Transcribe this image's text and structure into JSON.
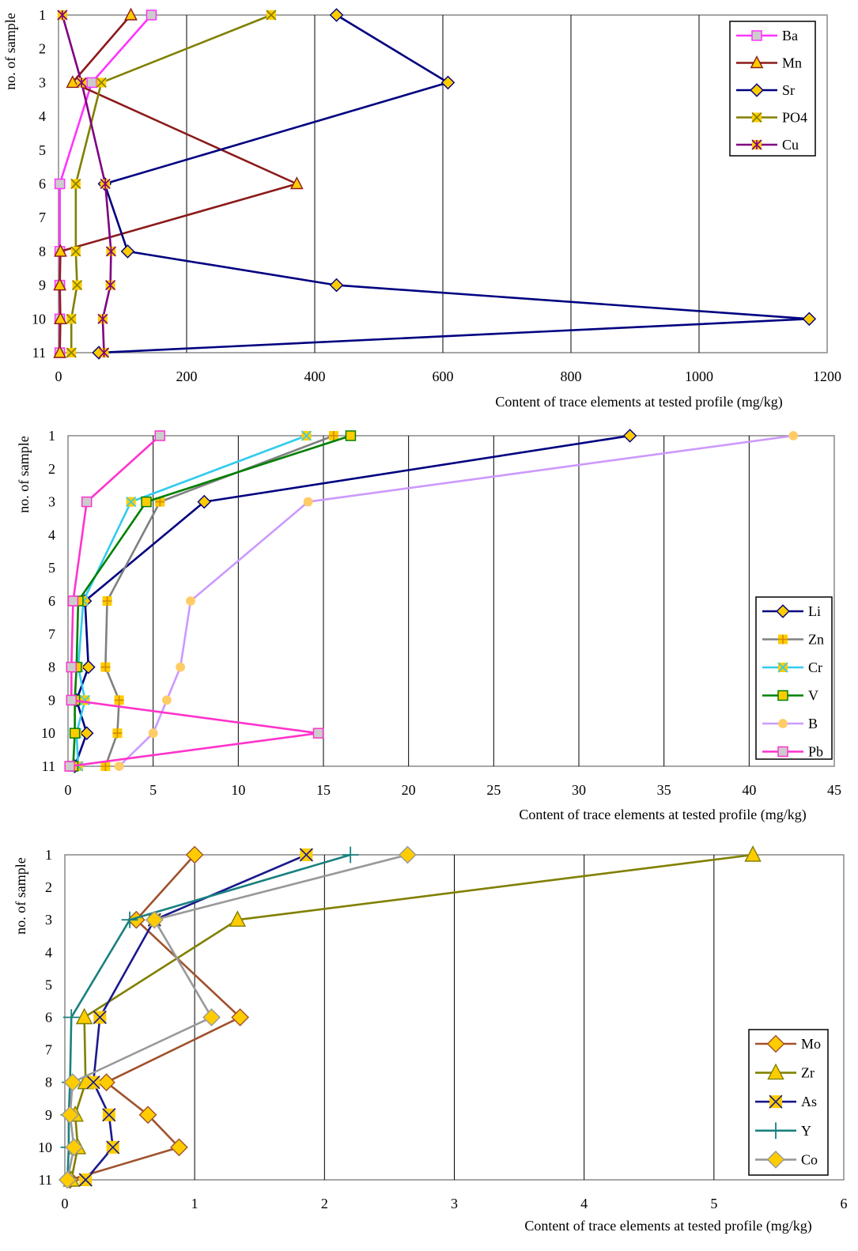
{
  "chart_data": [
    {
      "type": "line",
      "orientation": "horizontal-values",
      "ylabel": "no. of sample",
      "xlabel": "Content of trace elements at tested profile (mg/kg)",
      "samples": [
        1,
        2,
        3,
        4,
        5,
        6,
        7,
        8,
        9,
        10,
        11
      ],
      "xlim": [
        0,
        1200
      ],
      "xticks": [
        0,
        200,
        400,
        600,
        800,
        1000,
        1200
      ],
      "grid": "vertical",
      "legend_position": "top-right",
      "series": [
        {
          "name": "Ba",
          "color": "#ff33ff",
          "marker": "square",
          "samples": [
            1,
            3,
            6,
            8,
            9,
            10,
            11
          ],
          "values": [
            145,
            52,
            2,
            2,
            2,
            2,
            2
          ]
        },
        {
          "name": "Mn",
          "color": "#8b1a1a",
          "marker": "triangle",
          "samples": [
            1,
            3,
            6,
            8,
            9,
            10,
            11
          ],
          "values": [
            113,
            22,
            372,
            3,
            2,
            3,
            2
          ]
        },
        {
          "name": "Sr",
          "color": "#000080",
          "marker": "diamond",
          "samples": [
            1,
            3,
            6,
            8,
            9,
            10,
            11
          ],
          "values": [
            434,
            608,
            72,
            108,
            434,
            1172,
            63
          ]
        },
        {
          "name": "PO4",
          "color": "#808000",
          "marker": "x-square",
          "samples": [
            1,
            3,
            6,
            8,
            9,
            10,
            11
          ],
          "values": [
            332,
            67,
            27,
            27,
            29,
            20,
            20
          ]
        },
        {
          "name": "Cu",
          "color": "#800080",
          "marker": "star-square",
          "samples": [
            1,
            3,
            6,
            8,
            9,
            10,
            11
          ],
          "values": [
            6,
            36,
            73,
            82,
            81,
            69,
            71
          ]
        }
      ]
    },
    {
      "type": "line",
      "orientation": "horizontal-values",
      "ylabel": "no. of sample",
      "xlabel": "Content of trace elements at tested profile (mg/kg)",
      "samples": [
        1,
        2,
        3,
        4,
        5,
        6,
        7,
        8,
        9,
        10,
        11
      ],
      "xlim": [
        0,
        45
      ],
      "xticks": [
        0,
        5,
        10,
        15,
        20,
        25,
        30,
        35,
        40,
        45
      ],
      "grid": "vertical",
      "legend_position": "bottom-right",
      "series": [
        {
          "name": "Li",
          "color": "#000080",
          "marker": "diamond",
          "samples": [
            1,
            3,
            6,
            8,
            9,
            10,
            11
          ],
          "values": [
            33.0,
            8.0,
            1.0,
            1.2,
            0.5,
            1.1,
            0.4
          ]
        },
        {
          "name": "Zn",
          "color": "#808080",
          "marker": "plus-square",
          "samples": [
            1,
            3,
            6,
            8,
            9,
            10,
            11
          ],
          "values": [
            15.6,
            5.4,
            2.3,
            2.2,
            3.0,
            2.9,
            2.2
          ]
        },
        {
          "name": "Cr",
          "color": "#33ccee",
          "marker": "x-square",
          "samples": [
            1,
            3,
            6,
            8,
            9,
            10,
            11
          ],
          "values": [
            14.0,
            3.7,
            0.9,
            0.6,
            1.0,
            0.5,
            0.6
          ]
        },
        {
          "name": "V",
          "color": "#008000",
          "marker": "square",
          "samples": [
            1,
            3,
            6,
            8,
            9,
            10,
            11
          ],
          "values": [
            16.6,
            4.6,
            0.6,
            0.5,
            0.4,
            0.4,
            0.3
          ]
        },
        {
          "name": "B",
          "color": "#cc99ff",
          "marker": "circle",
          "samples": [
            1,
            3,
            6,
            8,
            9,
            10,
            11
          ],
          "values": [
            42.6,
            14.1,
            7.2,
            6.6,
            5.8,
            5.0,
            3.0
          ]
        },
        {
          "name": "Pb",
          "color": "#ff33cc",
          "marker": "square",
          "samples": [
            1,
            3,
            6,
            8,
            9,
            10,
            11
          ],
          "values": [
            5.4,
            1.1,
            0.3,
            0.2,
            0.2,
            14.7,
            0.1
          ]
        }
      ]
    },
    {
      "type": "line",
      "orientation": "horizontal-values",
      "ylabel": "no. of sample",
      "xlabel": "Content of trace elements at tested profile (mg/kg)",
      "samples": [
        1,
        2,
        3,
        4,
        5,
        6,
        7,
        8,
        9,
        10,
        11
      ],
      "xlim": [
        0,
        6
      ],
      "xticks": [
        0,
        1,
        2,
        3,
        4,
        5,
        6
      ],
      "grid": "vertical",
      "legend_position": "bottom-right",
      "series": [
        {
          "name": "Mo",
          "color": "#a0522d",
          "marker": "diamond",
          "samples": [
            1,
            3,
            6,
            8,
            9,
            10,
            11
          ],
          "values": [
            1.0,
            0.55,
            1.35,
            0.32,
            0.64,
            0.88,
            0.04
          ]
        },
        {
          "name": "Zr",
          "color": "#808000",
          "marker": "triangle",
          "samples": [
            1,
            3,
            6,
            8,
            9,
            10,
            11
          ],
          "values": [
            5.3,
            1.33,
            0.15,
            0.16,
            0.08,
            0.1,
            0.05
          ]
        },
        {
          "name": "As",
          "color": "#1a1a8c",
          "marker": "x-square",
          "samples": [
            1,
            3,
            6,
            8,
            9,
            10,
            11
          ],
          "values": [
            1.86,
            0.69,
            0.27,
            0.22,
            0.34,
            0.37,
            0.16
          ]
        },
        {
          "name": "Y",
          "color": "#1a8080",
          "marker": "plus",
          "samples": [
            1,
            3,
            6,
            8,
            9,
            10,
            11
          ],
          "values": [
            2.2,
            0.5,
            0.05,
            0.04,
            0.03,
            0.03,
            0.02
          ]
        },
        {
          "name": "Co",
          "color": "#999999",
          "marker": "diamond",
          "samples": [
            1,
            3,
            6,
            8,
            9,
            10,
            11
          ],
          "values": [
            2.64,
            0.69,
            1.13,
            0.06,
            0.04,
            0.07,
            0.02
          ]
        }
      ]
    }
  ]
}
